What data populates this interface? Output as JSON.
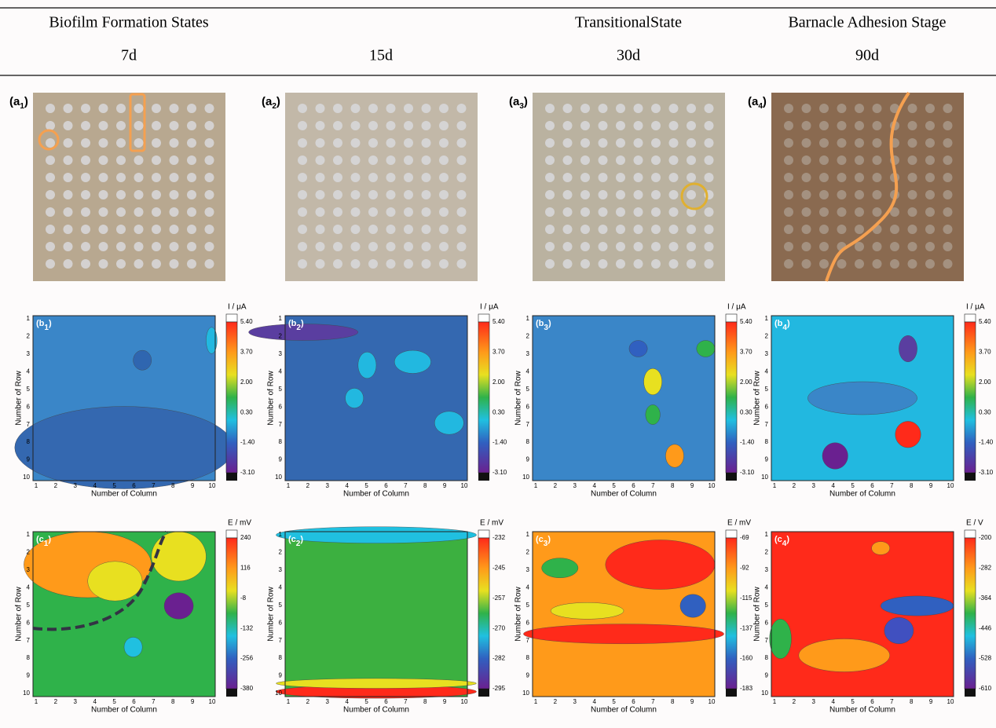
{
  "header": {
    "columns": [
      {
        "state": "Biofilm Formation States",
        "day": "7d"
      },
      {
        "day": "15d"
      },
      {
        "state": "TransitionalState",
        "day": "30d"
      },
      {
        "state": "Barnacle Adhesion Stage",
        "day": "90d"
      }
    ]
  },
  "panels": [
    {
      "photo": {
        "label": [
          "(a",
          "1",
          ")"
        ]
      },
      "current": {
        "label": [
          "(b",
          "1",
          ")"
        ],
        "unit": "I / μA",
        "ticks": [
          "5.40",
          "3.70",
          "2.00",
          "0.30",
          "-1.40",
          "-3.10"
        ]
      },
      "potential": {
        "label": [
          "(c",
          "1",
          ")"
        ],
        "unit": "E / mV",
        "ticks": [
          "240",
          "116",
          "-8",
          "-132",
          "-256",
          "-380"
        ]
      }
    },
    {
      "photo": {
        "label": [
          "(a",
          "2",
          ")"
        ]
      },
      "current": {
        "label": [
          "(b",
          "2",
          ")"
        ],
        "unit": "I / μA",
        "ticks": [
          "5.40",
          "3.70",
          "2.00",
          "0.30",
          "-1.40",
          "-3.10"
        ]
      },
      "potential": {
        "label": [
          "(c",
          "2",
          ")"
        ],
        "unit": "E / mV",
        "ticks": [
          "-232",
          "-245",
          "-257",
          "-270",
          "-282",
          "-295"
        ]
      }
    },
    {
      "photo": {
        "label": [
          "(a",
          "3",
          ")"
        ]
      },
      "current": {
        "label": [
          "(b",
          "3",
          ")"
        ],
        "unit": "I / μA",
        "ticks": [
          "5.40",
          "3.70",
          "2.00",
          "0.30",
          "-1.40",
          "-3.10"
        ]
      },
      "potential": {
        "label": [
          "(c",
          "3",
          ")"
        ],
        "unit": "E / mV",
        "ticks": [
          "-69",
          "-92",
          "-115",
          "-137",
          "-160",
          "-183"
        ]
      }
    },
    {
      "photo": {
        "label": [
          "(a",
          "4",
          ")"
        ]
      },
      "current": {
        "label": [
          "(b",
          "4",
          ")"
        ],
        "unit": "I / μA",
        "ticks": [
          "5.40",
          "3.70",
          "2.00",
          "0.30",
          "-1.40",
          "-3.10"
        ]
      },
      "potential": {
        "label": [
          "(c",
          "4",
          ")"
        ],
        "unit": "E / V",
        "ticks": [
          "-200",
          "-282",
          "-364",
          "-446",
          "-528",
          "-610"
        ]
      }
    }
  ],
  "axes": {
    "row_title": "Number of Row",
    "column_title": "Number of Column",
    "ticks": [
      "1",
      "2",
      "3",
      "4",
      "5",
      "6",
      "7",
      "8",
      "9",
      "10"
    ]
  }
}
